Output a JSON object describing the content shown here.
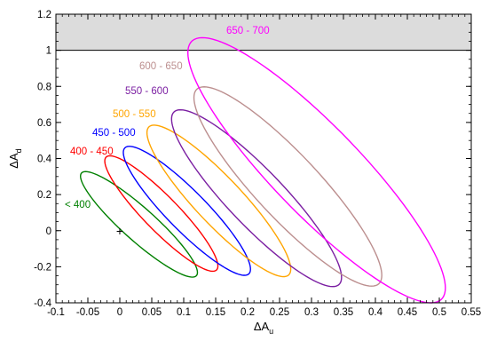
{
  "chart_data": {
    "type": "scatter",
    "title": "",
    "xlabel": {
      "base": "ΔA",
      "sub": "u"
    },
    "ylabel": {
      "base": "ΔA",
      "sub": "d"
    },
    "xlim": [
      -0.1,
      0.55
    ],
    "ylim": [
      -0.4,
      1.2
    ],
    "xticks": [
      -0.1,
      -0.05,
      0,
      0.05,
      0.1,
      0.15,
      0.2,
      0.25,
      0.3,
      0.35,
      0.4,
      0.45,
      0.5,
      0.55
    ],
    "xtick_labels": [
      "-0.1",
      "-0.05",
      "0",
      "0.05",
      "0.1",
      "0.15",
      "0.2",
      "0.25",
      "0.3",
      "0.35",
      "0.4",
      "0.45",
      "0.5",
      "0.55"
    ],
    "yticks": [
      -0.4,
      -0.2,
      0,
      0.2,
      0.4,
      0.6,
      0.8,
      1,
      1.2
    ],
    "ytick_labels": [
      "-0.4",
      "-0.2",
      "0",
      "0.2",
      "0.4",
      "0.6",
      "0.8",
      "1",
      "1.2"
    ],
    "grid": false,
    "excluded_band": {
      "y_from": 1.0,
      "y_to": 1.2,
      "color": "#dcdcdc"
    },
    "marker": {
      "symbol": "+",
      "x": 0.0,
      "y": 0.0
    },
    "ellipses": [
      {
        "label": "< 400",
        "color": "#008000",
        "center": [
          0.03,
          0.035
        ],
        "corner_tl": [
          -0.057,
          0.33
        ],
        "corner_br": [
          0.126,
          -0.255
        ],
        "label_pos": [
          -0.078,
          0.045
        ]
      },
      {
        "label": "400 - 450",
        "color": "#ff0000",
        "center": [
          0.065,
          0.095
        ],
        "corner_tl": [
          -0.017,
          0.42
        ],
        "corner_br": [
          0.16,
          -0.22
        ],
        "label_pos": [
          -0.075,
          0.135
        ]
      },
      {
        "label": "450 - 500",
        "color": "#0000ff",
        "center": [
          0.105,
          0.11
        ],
        "corner_tl": [
          0.013,
          0.475
        ],
        "corner_br": [
          0.212,
          -0.24
        ],
        "label_pos": [
          -0.044,
          0.175
        ]
      },
      {
        "label": "500 - 550",
        "color": "#ffa500",
        "center": [
          0.155,
          0.165
        ],
        "corner_tl": [
          0.042,
          0.585
        ],
        "corner_br": [
          0.267,
          -0.255
        ],
        "label_pos": [
          -0.013,
          0.17
        ]
      },
      {
        "label": "550 - 600",
        "color": "#7b1fa2",
        "center": [
          0.214,
          0.18
        ],
        "corner_tl": [
          0.072,
          0.715
        ],
        "corner_br": [
          0.338,
          -0.265
        ],
        "label_pos": [
          0.007,
          0.22
        ]
      },
      {
        "label": "600 - 650",
        "color": "#bc8f8f",
        "center": [
          0.263,
          0.245
        ],
        "corner_tl": [
          0.102,
          0.87
        ],
        "corner_br": [
          0.396,
          -0.235
        ],
        "label_pos": [
          0.03,
          0.245
        ]
      },
      {
        "label": "650 - 700",
        "color": "#ff00ff",
        "center": [
          0.308,
          0.335
        ],
        "corner_tl": [
          0.105,
          1.125
        ],
        "corner_br": [
          0.508,
          -0.345
        ],
        "label_pos": [
          0.058,
          0.14
        ]
      }
    ]
  }
}
